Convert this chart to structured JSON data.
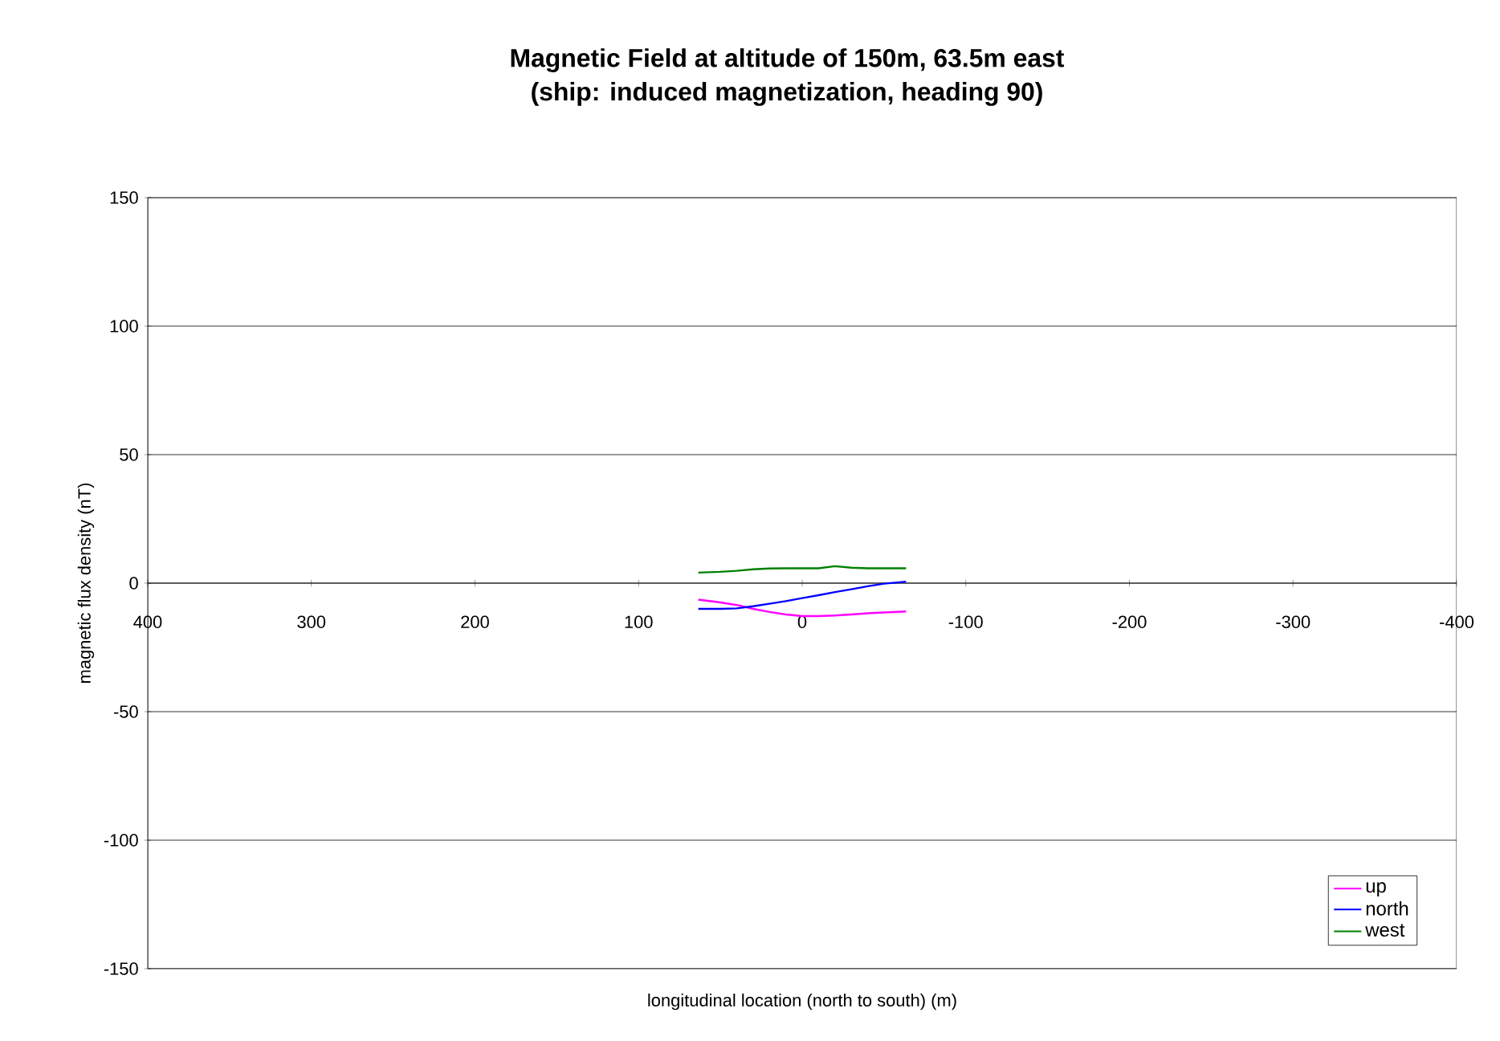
{
  "chart_data": {
    "type": "line",
    "title": "Magnetic Field at altitude of 150m, 63.5m east",
    "subtitle": "(ship: induced magnetization, heading 90)",
    "xlabel": "longitudinal location (north to south) (m)",
    "ylabel": "magnetic flux density (nT)",
    "x": [
      63.5,
      50,
      40,
      30,
      20,
      10,
      0,
      -10,
      -20,
      -30,
      -40,
      -50,
      -63.5
    ],
    "series": [
      {
        "name": "up",
        "color": "#ff00ff",
        "values": [
          -6.4,
          -7.5,
          -8.5,
          -10,
          -11.2,
          -12.2,
          -12.8,
          -12.8,
          -12.6,
          -12.2,
          -11.7,
          -11.4,
          -11
        ]
      },
      {
        "name": "north",
        "color": "#0000ff",
        "values": [
          -10,
          -10,
          -9.8,
          -9,
          -8,
          -7,
          -5.8,
          -4.7,
          -3.5,
          -2.4,
          -1.2,
          -0.2,
          0.6
        ]
      },
      {
        "name": "west",
        "color": "#008000",
        "values": [
          4.1,
          4.4,
          4.8,
          5.4,
          5.7,
          5.8,
          5.8,
          5.8,
          6.6,
          6,
          5.8,
          5.8,
          5.8
        ]
      }
    ],
    "xlim": [
      400,
      -400
    ],
    "xticks": [
      400,
      300,
      200,
      100,
      0,
      -100,
      -200,
      -300,
      -400
    ],
    "ylim": [
      -150,
      150
    ],
    "yticks": [
      -150,
      -100,
      -50,
      0,
      50,
      100,
      150
    ],
    "grid": "y",
    "legend": "bottom right",
    "marker": "none",
    "line_style": "solid"
  }
}
